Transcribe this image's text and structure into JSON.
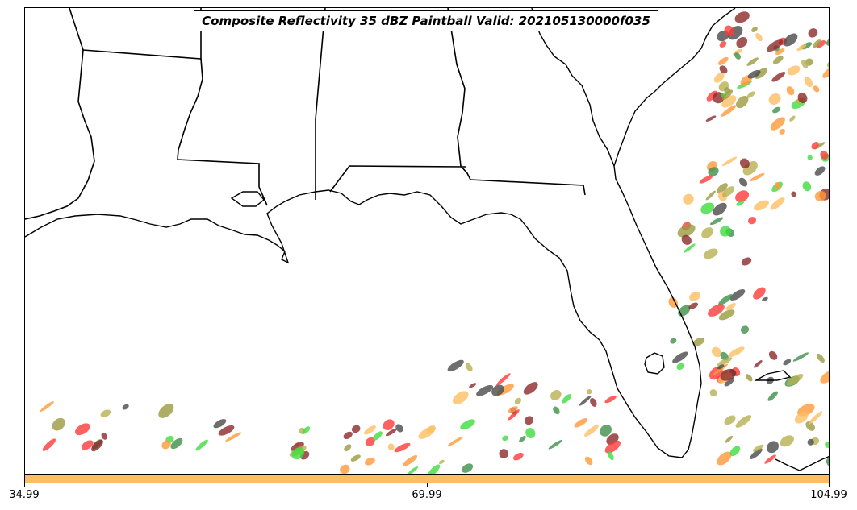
{
  "title": "Composite Reflectivity 35 dBZ Paintball Valid: 202105130000f035",
  "colorbar": {
    "color": "#fcbe62",
    "tick_labels": [
      "34.99",
      "69.99",
      "104.99"
    ]
  },
  "palette": {
    "red": "#ff3a3a",
    "green": "#3ddc3d",
    "olive": "#9a9a40",
    "orange": "#ff9a3a",
    "light_orange": "#fcbe62",
    "dark_red": "#8c2a2a",
    "dark_green": "#3e8f4a",
    "dark_gray": "#4a4a4a",
    "khaki": "#b7b050"
  },
  "map": {
    "region": "Southeastern United States and Gulf of Mexico",
    "features": [
      "state-borders",
      "coastlines"
    ]
  }
}
